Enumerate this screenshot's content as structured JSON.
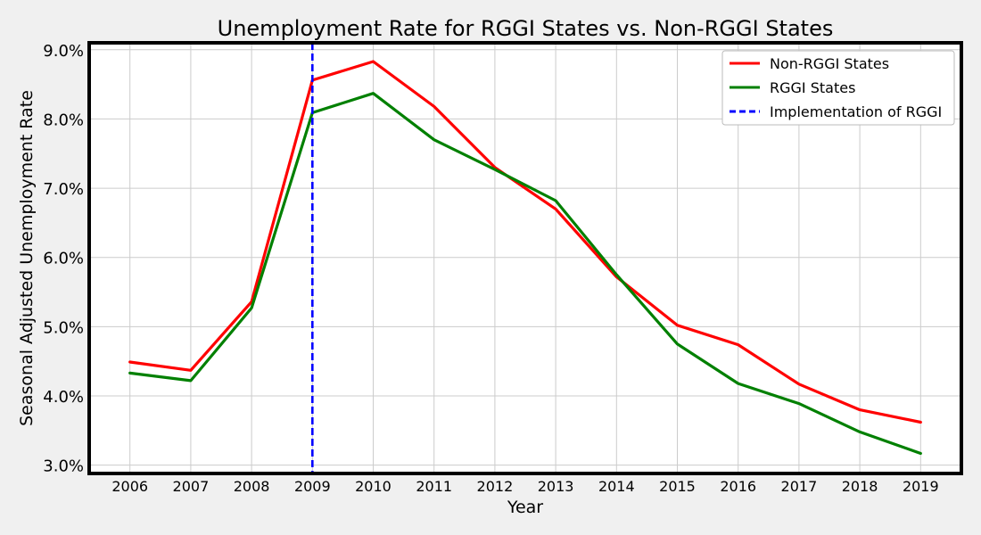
{
  "chart_data": {
    "type": "line",
    "title": "Unemployment Rate for RGGI States vs. Non-RGGI States",
    "xlabel": "Year",
    "ylabel": "Seasonal Adjusted Unemployment Rate",
    "x": [
      2006,
      2007,
      2008,
      2009,
      2010,
      2011,
      2012,
      2013,
      2014,
      2015,
      2016,
      2017,
      2018,
      2019
    ],
    "x_tick_labels": [
      "2006",
      "2007",
      "2008",
      "2009",
      "2010",
      "2011",
      "2012",
      "2013",
      "2014",
      "2015",
      "2016",
      "2017",
      "2018",
      "2019"
    ],
    "xlim": [
      2005.33,
      2019.67
    ],
    "ylim": [
      0.0288,
      0.091
    ],
    "y_ticks": [
      0.03,
      0.04,
      0.05,
      0.06,
      0.07,
      0.08,
      0.09
    ],
    "y_tick_labels": [
      "3.0%",
      "4.0%",
      "5.0%",
      "6.0%",
      "7.0%",
      "8.0%",
      "9.0%"
    ],
    "grid": true,
    "legend_position": "top-right",
    "series": [
      {
        "name": "Non-RGGI States",
        "color": "#ff0000",
        "style": "solid",
        "values": [
          0.0449,
          0.0437,
          0.0536,
          0.0856,
          0.0883,
          0.0818,
          0.073,
          0.067,
          0.0572,
          0.0502,
          0.0474,
          0.0417,
          0.038,
          0.0362
        ]
      },
      {
        "name": "RGGI States",
        "color": "#008000",
        "style": "solid",
        "values": [
          0.0433,
          0.0422,
          0.0527,
          0.0809,
          0.0837,
          0.077,
          0.0727,
          0.0682,
          0.0575,
          0.0475,
          0.0418,
          0.0389,
          0.0348,
          0.0317
        ]
      }
    ],
    "vertical_line": {
      "name": "Implementation of RGGI",
      "x": 2009,
      "color": "#0000ff",
      "style": "dashed"
    }
  }
}
